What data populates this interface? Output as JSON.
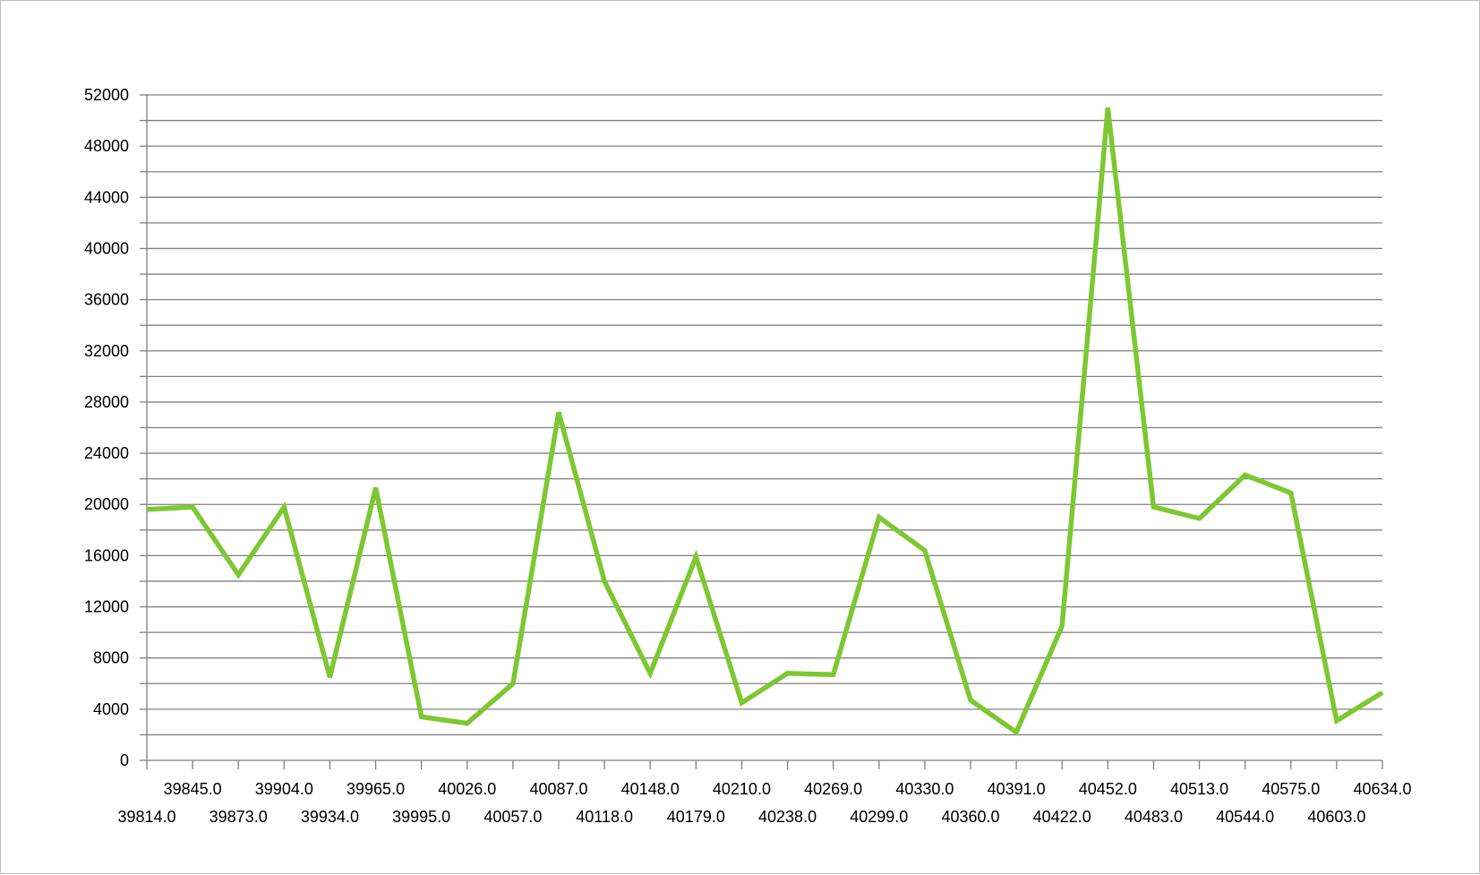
{
  "chart_data": {
    "type": "line",
    "title": "",
    "xlabel": "",
    "ylabel": "",
    "ylim": [
      0,
      52000
    ],
    "ytick_step": 4000,
    "ytick_labels": [
      "0",
      "4000",
      "8000",
      "12000",
      "16000",
      "20000",
      "24000",
      "28000",
      "32000",
      "36000",
      "40000",
      "44000",
      "48000",
      "52000"
    ],
    "x_tick_labels_upper": [
      "39845.0",
      "39904.0",
      "39965.0",
      "40026.0",
      "40087.0",
      "40148.0",
      "40210.0",
      "40269.0",
      "40330.0",
      "40391.0",
      "40452.0",
      "40513.0",
      "40575.0",
      "40634.0"
    ],
    "x_tick_labels_lower": [
      "39814.0",
      "39873.0",
      "39934.0",
      "39995.0",
      "40057.0",
      "40118.0",
      "40179.0",
      "40238.0",
      "40299.0",
      "40360.0",
      "40422.0",
      "40483.0",
      "40544.0",
      "40603.0"
    ],
    "grid": true,
    "legend": "none",
    "x": [
      39814,
      39845,
      39873,
      39904,
      39934,
      39965,
      39995,
      40026,
      40057,
      40087,
      40118,
      40148,
      40179,
      40210,
      40238,
      40269,
      40299,
      40330,
      40360,
      40391,
      40422,
      40452,
      40483,
      40513,
      40544,
      40575,
      40603,
      40634
    ],
    "series": [
      {
        "color": "#7dc832",
        "values": [
          19600,
          19800,
          14500,
          19800,
          6500,
          21300,
          3400,
          2900,
          6000,
          27200,
          14000,
          6800,
          15900,
          4500,
          6800,
          6700,
          19000,
          16400,
          4700,
          2200,
          10500,
          51000,
          19800,
          18900,
          22300,
          20900,
          3100,
          5300
        ]
      }
    ]
  }
}
